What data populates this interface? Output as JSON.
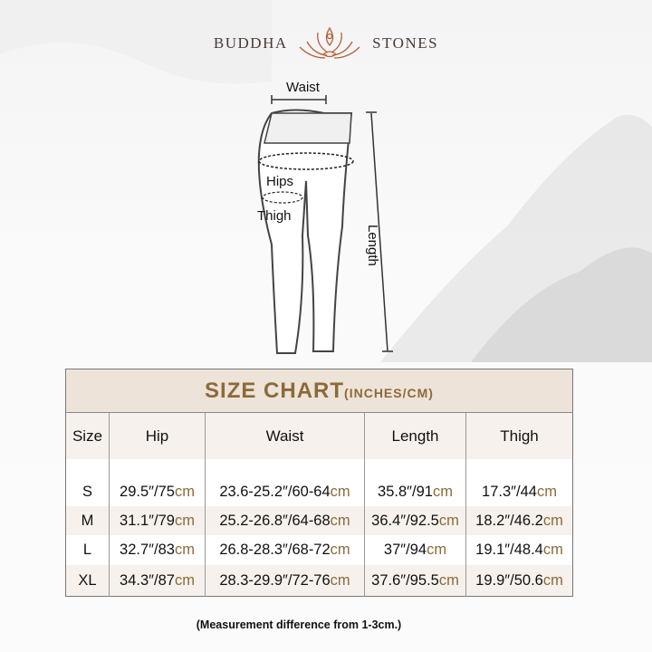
{
  "brand": {
    "left": "BUDDHA",
    "right": "STONES"
  },
  "diagram": {
    "labels": {
      "waist": "Waist",
      "hips": "Hips",
      "thigh": "Thigh",
      "length": "Length"
    }
  },
  "table": {
    "title": "SIZE CHART",
    "title_units": "(INCHES/CM)",
    "headers": [
      "Size",
      "Hip",
      "Waist",
      "Length",
      "Thigh"
    ],
    "rows": [
      {
        "size": "S",
        "cells": [
          {
            "main": "29.5″/75",
            "unit": "cm"
          },
          {
            "main": "23.6-25.2″/60-64",
            "unit": "cm"
          },
          {
            "main": "35.8″/91",
            "unit": "cm"
          },
          {
            "main": "17.3″/44",
            "unit": "cm"
          }
        ]
      },
      {
        "size": "M",
        "cells": [
          {
            "main": "31.1″/79",
            "unit": "cm"
          },
          {
            "main": "25.2-26.8″/64-68",
            "unit": "cm"
          },
          {
            "main": "36.4″/92.5",
            "unit": "cm"
          },
          {
            "main": "18.2″/46.2",
            "unit": "cm"
          }
        ]
      },
      {
        "size": "L",
        "cells": [
          {
            "main": "32.7″/83",
            "unit": "cm"
          },
          {
            "main": "26.8-28.3″/68-72",
            "unit": "cm"
          },
          {
            "main": "37″/94",
            "unit": "cm"
          },
          {
            "main": "19.1″/48.4",
            "unit": "cm"
          }
        ]
      },
      {
        "size": "XL",
        "cells": [
          {
            "main": "34.3″/87",
            "unit": "cm"
          },
          {
            "main": "28.3-29.9″/72-76",
            "unit": "cm"
          },
          {
            "main": "37.6″/95.5",
            "unit": "cm"
          },
          {
            "main": "19.9″/50.6",
            "unit": "cm"
          }
        ]
      }
    ]
  },
  "note": "(Measurement difference from 1-3cm.)",
  "colors": {
    "accent": "#8b6a3a",
    "title_bg": "#ede3d8",
    "stripe": "#f6f1ec"
  }
}
